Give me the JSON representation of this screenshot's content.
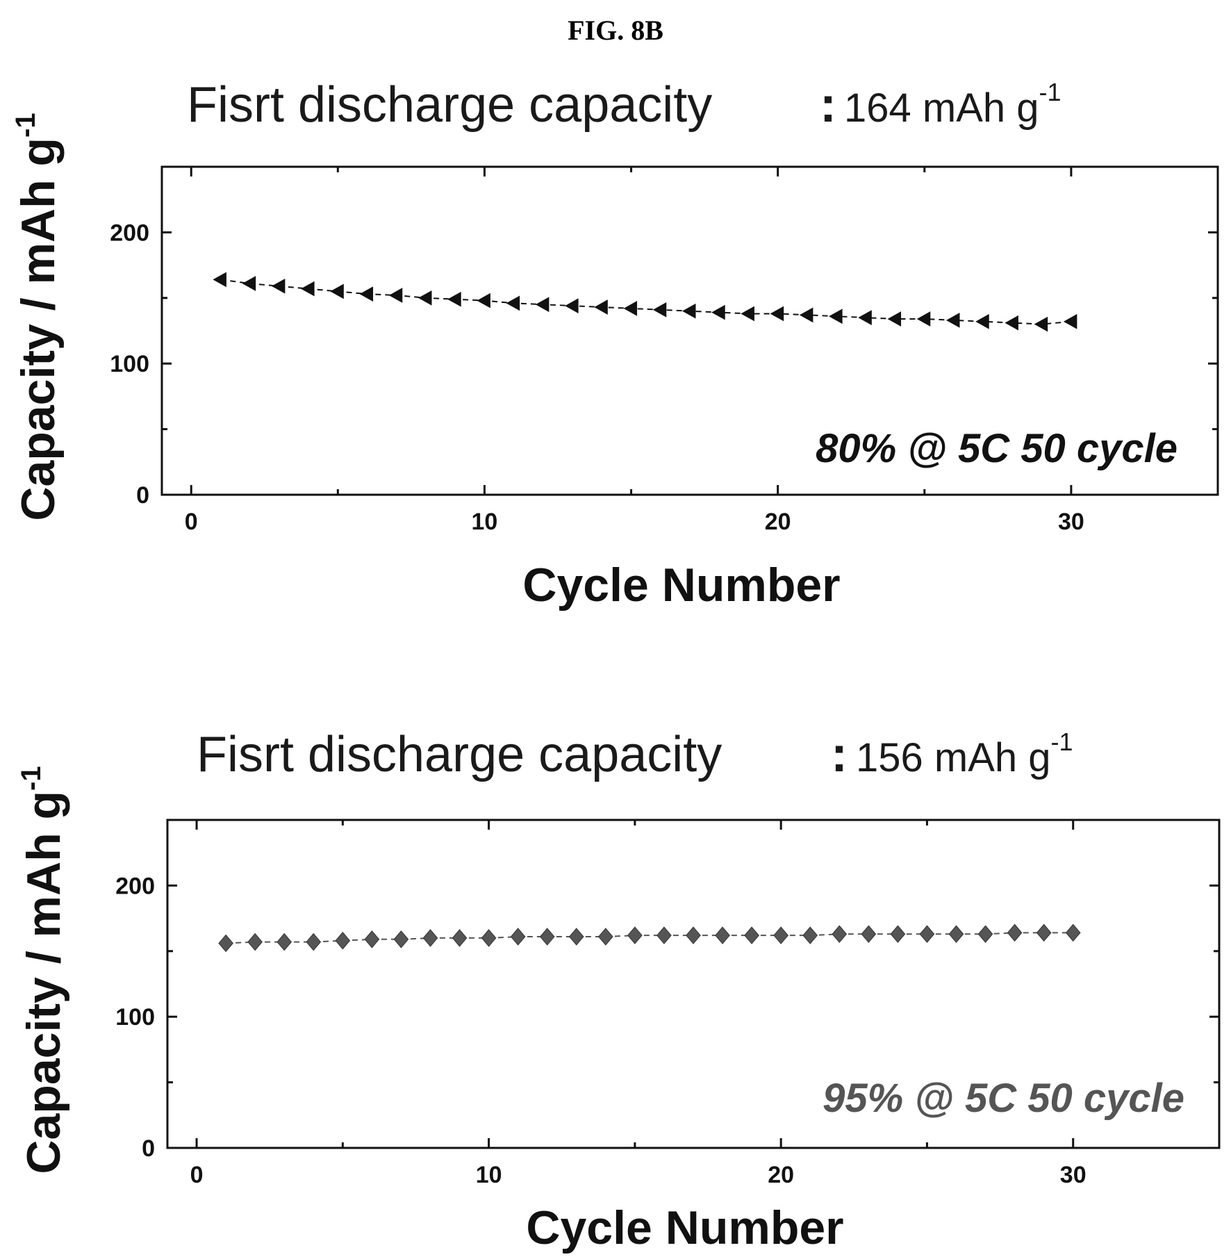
{
  "figure_label": "FIG. 8B",
  "chart_data": [
    {
      "type": "line",
      "title": "Fisrt discharge capacity : 164 mAh g-1",
      "title_parts": {
        "text": "Fisrt discharge capacity",
        "colon": ":",
        "value": "164 mAh g",
        "superscript": "-1"
      },
      "xlabel": "Cycle Number",
      "ylabel": "Capacity / mAh g-1",
      "ylabel_parts": {
        "text": "Capacity / mAh g",
        "superscript": "-1"
      },
      "xlim": [
        -1,
        35
      ],
      "ylim": [
        0,
        250
      ],
      "xticks": [
        0,
        10,
        20,
        30
      ],
      "yticks": [
        0,
        100,
        200
      ],
      "xtick_labels": [
        "0",
        "10",
        "20",
        "30"
      ],
      "ytick_labels": [
        "0",
        "100",
        "200"
      ],
      "annotation": "80% @ 5C 50 cycle",
      "marker": "left-triangle",
      "color": "#111111",
      "series": [
        {
          "x": [
            1,
            2,
            3,
            4,
            5,
            6,
            7,
            8,
            9,
            10,
            11,
            12,
            13,
            14,
            15,
            16,
            17,
            18,
            19,
            20,
            21,
            22,
            23,
            24,
            25,
            26,
            27,
            28,
            29,
            30
          ],
          "values": [
            164,
            161,
            159,
            157,
            155,
            153,
            152,
            150,
            149,
            148,
            146,
            145,
            144,
            143,
            142,
            141,
            140,
            139,
            138,
            138,
            137,
            136,
            135,
            134,
            134,
            133,
            132,
            131,
            130,
            132
          ]
        }
      ]
    },
    {
      "type": "line",
      "title": "Fisrt discharge capacity : 156 mAh g-1",
      "title_parts": {
        "text": "Fisrt discharge capacity",
        "colon": ":",
        "value": "156 mAh g",
        "superscript": "-1"
      },
      "xlabel": "Cycle Number",
      "ylabel": "Capacity / mAh g-1",
      "ylabel_parts": {
        "text": "Capacity / mAh g",
        "superscript": "-1"
      },
      "xlim": [
        -1,
        35
      ],
      "ylim": [
        0,
        250
      ],
      "xticks": [
        0,
        10,
        20,
        30
      ],
      "yticks": [
        0,
        100,
        200
      ],
      "xtick_labels": [
        "0",
        "10",
        "20",
        "30"
      ],
      "ytick_labels": [
        "0",
        "100",
        "200"
      ],
      "annotation": "95% @ 5C 50 cycle",
      "marker": "diamond",
      "color": "#555555",
      "series": [
        {
          "x": [
            1,
            2,
            3,
            4,
            5,
            6,
            7,
            8,
            9,
            10,
            11,
            12,
            13,
            14,
            15,
            16,
            17,
            18,
            19,
            20,
            21,
            22,
            23,
            24,
            25,
            26,
            27,
            28,
            29,
            30
          ],
          "values": [
            156,
            157,
            157,
            157,
            158,
            159,
            159,
            160,
            160,
            160,
            161,
            161,
            161,
            161,
            162,
            162,
            162,
            162,
            162,
            162,
            162,
            163,
            163,
            163,
            163,
            163,
            163,
            164,
            164,
            164
          ]
        }
      ]
    }
  ]
}
